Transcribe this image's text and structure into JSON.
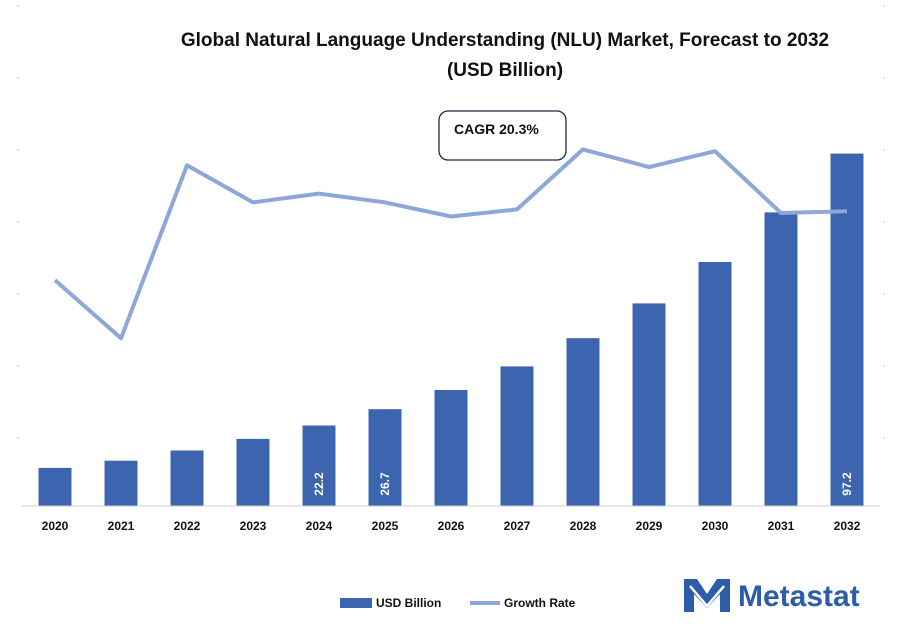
{
  "chart_data": {
    "type": "bar",
    "title_line1": "Global Natural Language Understanding (NLU) Market, Forecast to 2032",
    "title_line2": "(USD Billion)",
    "categories": [
      "2020",
      "2021",
      "2022",
      "2023",
      "2024",
      "2025",
      "2026",
      "2027",
      "2028",
      "2029",
      "2030",
      "2031",
      "2032"
    ],
    "series": [
      {
        "name": "USD Billion",
        "kind": "bar",
        "color": "#3C64AF",
        "values": [
          10.5,
          12.5,
          15.3,
          18.5,
          22.2,
          26.7,
          32.0,
          38.5,
          46.3,
          55.9,
          67.3,
          81.0,
          97.2
        ],
        "data_labels": {
          "4": "22.2",
          "5": "26.7",
          "12": "97.2"
        }
      },
      {
        "name": "Growth Rate",
        "kind": "line",
        "color": "#8EA6D8",
        "values": [
          16.8,
          13.5,
          23.3,
          21.2,
          21.7,
          21.2,
          20.4,
          20.8,
          24.2,
          23.2,
          24.1,
          20.6,
          20.7
        ]
      }
    ],
    "bar_ylim": [
      0,
      112
    ],
    "line_ylim": [
      4,
      27
    ],
    "annotation": "CAGR 20.3%",
    "legend_position": "bottom"
  },
  "branding": {
    "name": "Metastat",
    "color": "#2E5DA8",
    "icon": "metastat-logo-icon"
  }
}
